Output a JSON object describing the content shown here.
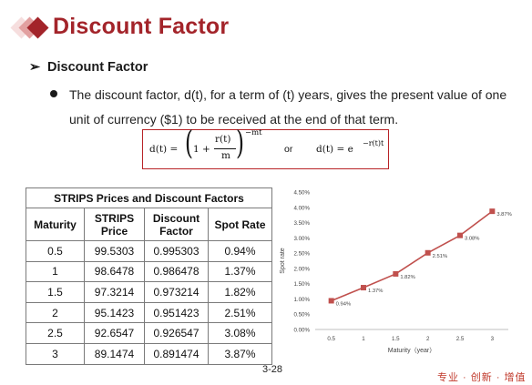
{
  "header": {
    "title": "Discount Factor"
  },
  "section": {
    "heading": "Discount Factor",
    "paragraph": "The discount factor, d(t), for a term of (t) years, gives the present value of one unit of currency ($1) to be received at the end of that term."
  },
  "formula": {
    "lhs": "d(t) =",
    "one_plus": "1 +",
    "numerator": "r(t)",
    "denominator": "m",
    "exponent": "−mt",
    "or": "or",
    "alt_lhs": "d(t) = e",
    "alt_exponent": "−r(t)t"
  },
  "table": {
    "caption": "STRIPS Prices and Discount Factors",
    "headers": [
      "Maturity",
      "STRIPS Price",
      "Discount Factor",
      "Spot Rate"
    ],
    "rows": [
      [
        "0.5",
        "99.5303",
        "0.995303",
        "0.94%"
      ],
      [
        "1",
        "98.6478",
        "0.986478",
        "1.37%"
      ],
      [
        "1.5",
        "97.3214",
        "0.973214",
        "1.82%"
      ],
      [
        "2",
        "95.1423",
        "0.951423",
        "2.51%"
      ],
      [
        "2.5",
        "92.6547",
        "0.926547",
        "3.08%"
      ],
      [
        "3",
        "89.1474",
        "0.891474",
        "3.87%"
      ]
    ]
  },
  "chart_data": {
    "type": "line",
    "x": [
      0.5,
      1,
      1.5,
      2,
      2.5,
      3
    ],
    "values": [
      0.94,
      1.37,
      1.82,
      2.51,
      3.08,
      3.87
    ],
    "data_labels": [
      "0.94%",
      "1.37%",
      "1.82%",
      "2.51%",
      "3.08%",
      "3.87%"
    ],
    "xlabel": "Maturity（year）",
    "ylabel": "Spot rate",
    "x_ticks": [
      "0.5",
      "1",
      "1.5",
      "2",
      "2.5",
      "3"
    ],
    "y_ticks": [
      "0.00%",
      "0.50%",
      "1.00%",
      "1.50%",
      "2.00%",
      "2.50%",
      "3.00%",
      "3.50%",
      "4.00%",
      "4.50%"
    ],
    "ylim": [
      0,
      4.5
    ],
    "grid": false,
    "color": "#c0504d"
  },
  "footer": {
    "page": "3-28",
    "brand": "专业 · 创新 · 增值"
  }
}
